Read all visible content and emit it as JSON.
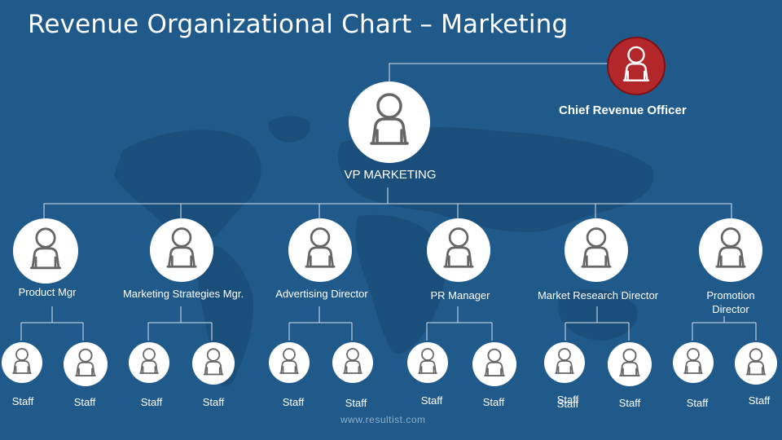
{
  "title": "Revenue Organizational Chart – Marketing",
  "chief": {
    "label": "Chief Revenue Officer",
    "icon": "person-icon"
  },
  "vp": {
    "label": "VP MARKETING",
    "icon": "person-icon"
  },
  "managers": [
    {
      "label": "Product Mgr"
    },
    {
      "label": "Marketing Strategies Mgr."
    },
    {
      "label": "Advertising Director"
    },
    {
      "label": "PR Manager"
    },
    {
      "label": "Market Research Director"
    },
    {
      "label": "Promotion Director"
    }
  ],
  "staff_label": "Staff",
  "overlap_label": "Staff",
  "footer": "www.resultist.com",
  "colors": {
    "background": "#1f5a8b",
    "chief": "#b3262a",
    "node": "#ffffff",
    "line": "#d8e2ec"
  }
}
